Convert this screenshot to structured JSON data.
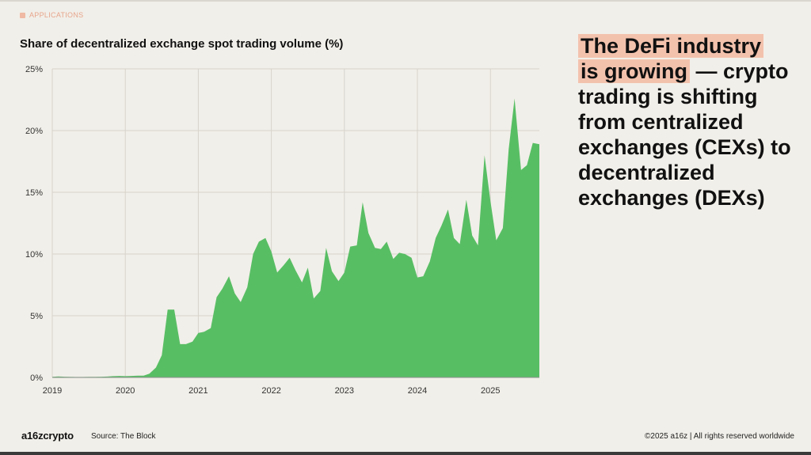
{
  "section_label": "APPLICATIONS",
  "headline": {
    "highlight_line1": "The DeFi industry",
    "highlight_line2": "is growing",
    "rest": "— crypto trading is shifting from centralized exchanges (CEXs) to decentralized exchanges (DEXs)"
  },
  "footer": {
    "logo": "a16zcrypto",
    "source": "Source: The Block",
    "copyright": "©2025 a16z | All rights reserved worldwide"
  },
  "colors": {
    "background": "#f1efe9",
    "area_fill": "#58be64",
    "highlight": "#f3c2ad",
    "section_tag": "#e7a58c"
  },
  "chart_data": {
    "type": "area",
    "title": "Share of decentralized exchange spot trading volume (%)",
    "xlabel": "",
    "ylabel": "",
    "x_ticks": [
      "2019",
      "2020",
      "2021",
      "2022",
      "2023",
      "2024",
      "2025"
    ],
    "y_ticks": [
      "0%",
      "5%",
      "10%",
      "15%",
      "20%",
      "25%"
    ],
    "ylim": [
      0,
      25
    ],
    "xlim": [
      2019.0,
      2025.67
    ],
    "grid": true,
    "legend": "none",
    "series": [
      {
        "x": [
          2019.0,
          2019.08,
          2019.17,
          2019.25,
          2019.33,
          2019.42,
          2019.5,
          2019.58,
          2019.67,
          2019.75,
          2019.83,
          2019.92,
          2020.0,
          2020.08,
          2020.17,
          2020.25,
          2020.33,
          2020.42,
          2020.5,
          2020.58,
          2020.67,
          2020.75,
          2020.83,
          2020.92,
          2021.0,
          2021.08,
          2021.17,
          2021.25,
          2021.33,
          2021.42,
          2021.5,
          2021.58,
          2021.67,
          2021.75,
          2021.83,
          2021.92,
          2022.0,
          2022.08,
          2022.17,
          2022.25,
          2022.33,
          2022.42,
          2022.5,
          2022.58,
          2022.67,
          2022.75,
          2022.83,
          2022.92,
          2023.0,
          2023.08,
          2023.17,
          2023.25,
          2023.33,
          2023.42,
          2023.5,
          2023.58,
          2023.67,
          2023.75,
          2023.83,
          2023.92,
          2024.0,
          2024.08,
          2024.17,
          2024.25,
          2024.33,
          2024.42,
          2024.5,
          2024.58,
          2024.67,
          2024.75,
          2024.83,
          2024.92,
          2025.0,
          2025.08,
          2025.17,
          2025.25,
          2025.33,
          2025.42,
          2025.5,
          2025.58,
          2025.67
        ],
        "y": [
          0.05,
          0.08,
          0.06,
          0.05,
          0.04,
          0.04,
          0.05,
          0.05,
          0.06,
          0.07,
          0.1,
          0.12,
          0.1,
          0.12,
          0.14,
          0.15,
          0.3,
          0.8,
          1.8,
          5.5,
          5.5,
          2.7,
          2.7,
          2.9,
          3.6,
          3.7,
          4.0,
          6.5,
          7.2,
          8.2,
          6.8,
          6.1,
          7.3,
          10.0,
          11.0,
          11.3,
          10.2,
          8.5,
          9.1,
          9.7,
          8.7,
          7.7,
          8.9,
          6.4,
          7.0,
          10.5,
          8.6,
          7.8,
          8.5,
          10.6,
          10.7,
          14.2,
          11.7,
          10.5,
          10.4,
          11.0,
          9.6,
          10.1,
          10.0,
          9.7,
          8.1,
          8.2,
          9.4,
          11.3,
          12.3,
          13.6,
          11.3,
          10.8,
          14.4,
          11.5,
          10.7,
          18.0,
          14.3,
          11.1,
          12.1,
          18.5,
          22.6,
          16.8,
          17.2,
          19.0,
          18.9
        ]
      }
    ]
  }
}
